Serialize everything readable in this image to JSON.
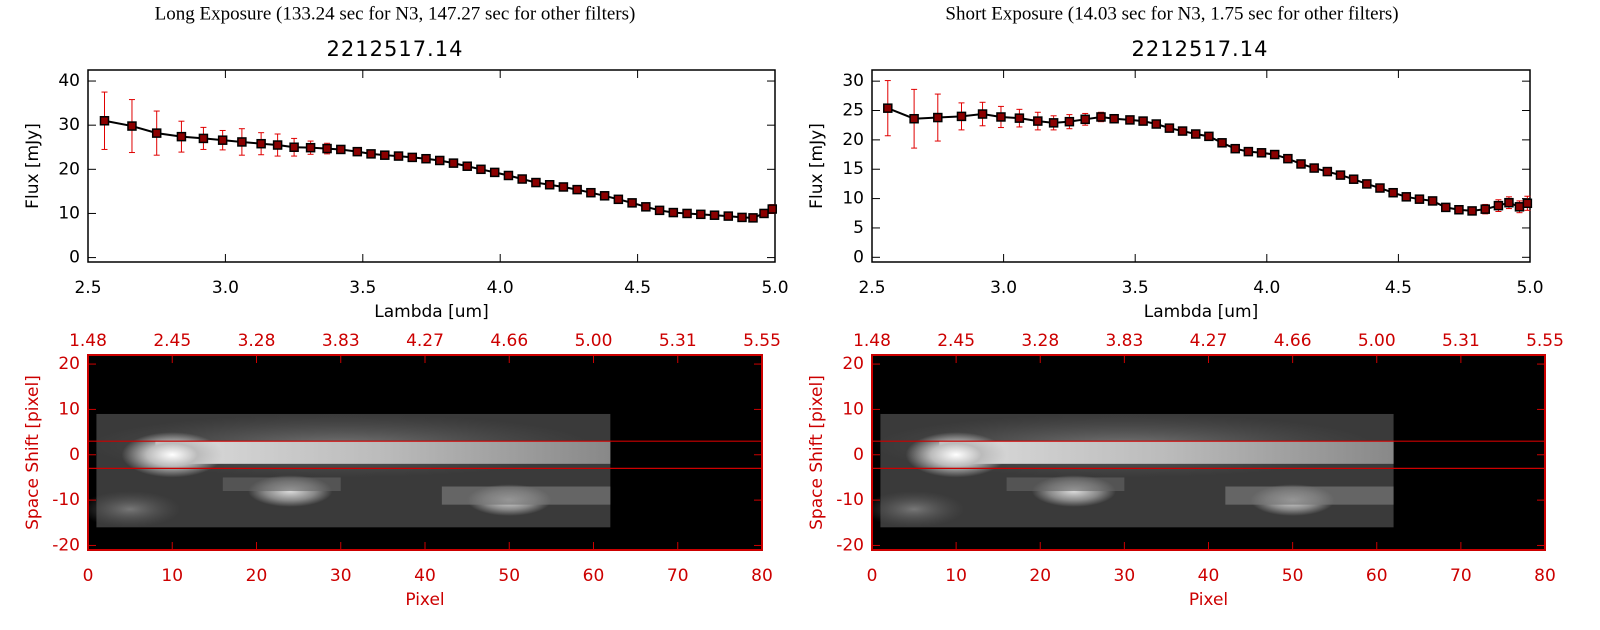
{
  "chart_data": [
    {
      "type": "line",
      "title": "Long Exposure (133.24 sec for N3, 147.27 sec for other filters)",
      "subtitle": "2212517.14",
      "xlabel": "Lambda [um]",
      "ylabel": "Flux [mJy]",
      "x": [
        2.56,
        2.66,
        2.75,
        2.84,
        2.92,
        2.99,
        3.06,
        3.13,
        3.19,
        3.25,
        3.31,
        3.37,
        3.42,
        3.48,
        3.53,
        3.58,
        3.63,
        3.68,
        3.73,
        3.78,
        3.83,
        3.88,
        3.93,
        3.98,
        4.03,
        4.08,
        4.13,
        4.18,
        4.23,
        4.28,
        4.33,
        4.38,
        4.43,
        4.48,
        4.53,
        4.58,
        4.63,
        4.68,
        4.73,
        4.78,
        4.83,
        4.88,
        4.92,
        4.96,
        4.99
      ],
      "series": [
        {
          "color": "#000000",
          "marker_color": "#8b0000",
          "error_color": "#e00000",
          "values": [
            31,
            29.8,
            28.2,
            27.4,
            27,
            26.6,
            26.2,
            25.8,
            25.5,
            25,
            24.9,
            24.7,
            24.5,
            24,
            23.5,
            23.2,
            23,
            22.7,
            22.4,
            22,
            21.4,
            20.7,
            20,
            19.3,
            18.6,
            17.8,
            17,
            16.5,
            16,
            15.4,
            14.7,
            14,
            13.2,
            12.4,
            11.5,
            10.7,
            10.2,
            10,
            9.8,
            9.6,
            9.4,
            9.1,
            9,
            10,
            11
          ],
          "errors": [
            6.5,
            6,
            5,
            3.5,
            2.5,
            2.2,
            3,
            2.5,
            2.5,
            2,
            1.5,
            1.2,
            0.8,
            0.6,
            0.5,
            0.5,
            0.5,
            0.5,
            0.5,
            0.5,
            0.5,
            0.5,
            0.5,
            0.5,
            0.5,
            0.5,
            0.5,
            0.5,
            0.5,
            0.5,
            0.5,
            0.5,
            0.5,
            0.5,
            0.5,
            0.5,
            0.5,
            0.5,
            0.5,
            0.5,
            0.5,
            0.5,
            0.5,
            0.8,
            1
          ]
        }
      ],
      "xlim": [
        2.5,
        5.0
      ],
      "ylim": [
        -1,
        42.5
      ],
      "xticks": [
        2.5,
        {
          "value": 3,
          "label": "3.0"
        },
        3.5,
        {
          "value": 4,
          "label": "4.0"
        },
        4.5,
        {
          "value": 5,
          "label": "5.0"
        }
      ],
      "yticks": [
        0,
        10,
        20,
        30,
        40
      ]
    },
    {
      "type": "image",
      "xlabel": "Pixel",
      "ylabel": "Space Shift [pixel]",
      "color": "#cc0000",
      "xlim": [
        0,
        80
      ],
      "ylim": [
        -21,
        22
      ],
      "xticks": [
        0,
        10,
        20,
        30,
        40,
        50,
        60,
        70,
        80
      ],
      "yticks": [
        -20,
        -10,
        0,
        10,
        20
      ],
      "x2ticks": [
        {
          "value": 0,
          "label": "1.48"
        },
        {
          "value": 10,
          "label": "2.45"
        },
        {
          "value": 20,
          "label": "3.28"
        },
        {
          "value": 30,
          "label": "3.83"
        },
        {
          "value": 40,
          "label": "4.27"
        },
        {
          "value": 50,
          "label": "4.66"
        },
        {
          "value": 60,
          "label": "5.00"
        },
        {
          "value": 70,
          "label": "5.31"
        },
        {
          "value": 80,
          "label": "5.55"
        }
      ],
      "hlines": [
        3,
        -3
      ]
    },
    {
      "type": "line",
      "title": "Short Exposure (14.03 sec for N3, 1.75 sec for other filters)",
      "subtitle": "2212517.14",
      "xlabel": "Lambda [um]",
      "ylabel": "Flux [mJy]",
      "x": [
        2.56,
        2.66,
        2.75,
        2.84,
        2.92,
        2.99,
        3.06,
        3.13,
        3.19,
        3.25,
        3.31,
        3.37,
        3.42,
        3.48,
        3.53,
        3.58,
        3.63,
        3.68,
        3.73,
        3.78,
        3.83,
        3.88,
        3.93,
        3.98,
        4.03,
        4.08,
        4.13,
        4.18,
        4.23,
        4.28,
        4.33,
        4.38,
        4.43,
        4.48,
        4.53,
        4.58,
        4.63,
        4.68,
        4.73,
        4.78,
        4.83,
        4.88,
        4.92,
        4.96,
        4.99
      ],
      "series": [
        {
          "color": "#000000",
          "marker_color": "#8b0000",
          "error_color": "#e00000",
          "values": [
            25.4,
            23.6,
            23.8,
            24,
            24.4,
            23.9,
            23.7,
            23.2,
            22.9,
            23.1,
            23.5,
            23.9,
            23.6,
            23.4,
            23.2,
            22.7,
            22,
            21.5,
            21,
            20.6,
            19.5,
            18.5,
            18,
            17.8,
            17.5,
            16.8,
            15.9,
            15.2,
            14.6,
            14,
            13.3,
            12.5,
            11.8,
            11,
            10.3,
            9.9,
            9.6,
            8.5,
            8.1,
            7.9,
            8.2,
            8.8,
            9.3,
            8.6,
            9.2
          ],
          "errors": [
            4.7,
            5,
            4,
            2.3,
            2,
            1.8,
            1.5,
            1.5,
            1.2,
            1.2,
            1,
            0.8,
            0.5,
            0.5,
            0.5,
            0.5,
            0.5,
            0.5,
            0.5,
            0.5,
            0.5,
            0.5,
            0.5,
            0.5,
            0.5,
            0.5,
            0.5,
            0.5,
            0.5,
            0.5,
            0.5,
            0.5,
            0.5,
            0.5,
            0.5,
            0.5,
            0.5,
            0.5,
            0.6,
            0.6,
            0.8,
            1,
            1,
            1,
            1.2
          ]
        }
      ],
      "xlim": [
        2.5,
        5.0
      ],
      "ylim": [
        -0.8,
        31.9
      ],
      "xticks": [
        2.5,
        {
          "value": 3,
          "label": "3.0"
        },
        3.5,
        {
          "value": 4,
          "label": "4.0"
        },
        4.5,
        {
          "value": 5,
          "label": "5.0"
        }
      ],
      "yticks": [
        0,
        5,
        10,
        15,
        20,
        25,
        30
      ]
    },
    {
      "type": "image",
      "xlabel": "Pixel",
      "ylabel": "Space Shift [pixel]",
      "color": "#cc0000",
      "xlim": [
        0,
        80
      ],
      "ylim": [
        -21,
        22
      ],
      "xticks": [
        0,
        10,
        20,
        30,
        40,
        50,
        60,
        70,
        80
      ],
      "yticks": [
        -20,
        -10,
        0,
        10,
        20
      ],
      "x2ticks": [
        {
          "value": 0,
          "label": "1.48"
        },
        {
          "value": 10,
          "label": "2.45"
        },
        {
          "value": 20,
          "label": "3.28"
        },
        {
          "value": 30,
          "label": "3.83"
        },
        {
          "value": 40,
          "label": "4.27"
        },
        {
          "value": 50,
          "label": "4.66"
        },
        {
          "value": 60,
          "label": "5.00"
        },
        {
          "value": 70,
          "label": "5.31"
        },
        {
          "value": 80,
          "label": "5.55"
        }
      ],
      "hlines": [
        3,
        -3
      ]
    }
  ]
}
